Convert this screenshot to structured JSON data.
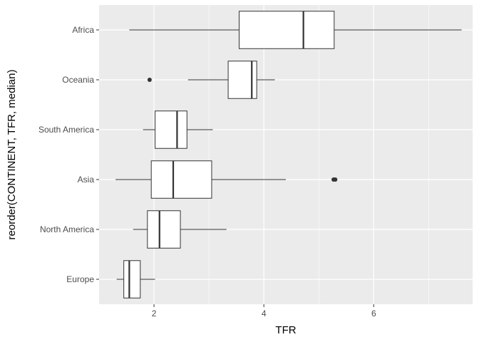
{
  "chart_data": {
    "type": "boxplot",
    "orientation": "horizontal",
    "title": "",
    "xlabel": "TFR",
    "ylabel": "reorder(CONTINENT, TFR, median)",
    "xlim": [
      1.0,
      7.8
    ],
    "x_ticks": [
      2,
      4,
      6
    ],
    "x_tick_labels": [
      "2",
      "4",
      "6"
    ],
    "grid": true,
    "legend": "none",
    "colors": {
      "panel": "#EBEBEB",
      "grid": "#FFFFFF",
      "box_fill": "#FFFFFF",
      "box_stroke": "#333333",
      "outlier": "#333333",
      "tick_label": "#4D4D4D"
    },
    "categories": [
      "Africa",
      "Oceania",
      "South America",
      "Asia",
      "North America",
      "Europe"
    ],
    "boxes": [
      {
        "category": "Africa",
        "whisker_low": 1.55,
        "q1": 3.55,
        "median": 4.72,
        "q3": 5.28,
        "whisker_high": 7.6,
        "outliers": []
      },
      {
        "category": "Oceania",
        "whisker_low": 2.62,
        "q1": 3.35,
        "median": 3.78,
        "q3": 3.87,
        "whisker_high": 4.2,
        "outliers": [
          1.92
        ]
      },
      {
        "category": "South America",
        "whisker_low": 1.8,
        "q1": 2.02,
        "median": 2.42,
        "q3": 2.6,
        "whisker_high": 3.07,
        "outliers": []
      },
      {
        "category": "Asia",
        "whisker_low": 1.3,
        "q1": 1.95,
        "median": 2.35,
        "q3": 3.05,
        "whisker_high": 4.4,
        "outliers": [
          5.27,
          5.3
        ]
      },
      {
        "category": "North America",
        "whisker_low": 1.62,
        "q1": 1.88,
        "median": 2.1,
        "q3": 2.48,
        "whisker_high": 3.32,
        "outliers": []
      },
      {
        "category": "Europe",
        "whisker_low": 1.32,
        "q1": 1.45,
        "median": 1.55,
        "q3": 1.75,
        "whisker_high": 2.02,
        "outliers": []
      }
    ]
  }
}
